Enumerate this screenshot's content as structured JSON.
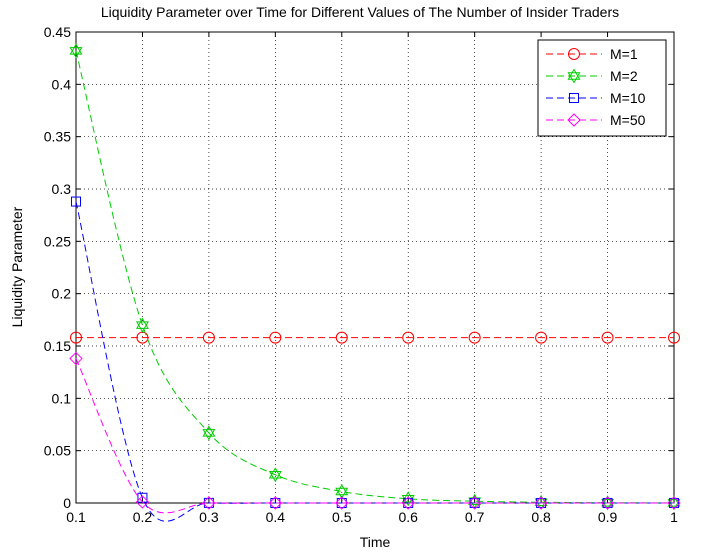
{
  "chart_data": {
    "type": "line",
    "title": "Liquidity Parameter over Time for Different Values of The Number of Insider Traders",
    "xlabel": "Time",
    "ylabel": "Liquidity Parameter",
    "xlim": [
      0.1,
      1
    ],
    "ylim": [
      0,
      0.45
    ],
    "grid": true,
    "legend_position": "top-right",
    "x": [
      0.1,
      0.2,
      0.3,
      0.4,
      0.5,
      0.6,
      0.7,
      0.8,
      0.9,
      1.0
    ],
    "xticks": [
      "0.1",
      "0.2",
      "0.3",
      "0.4",
      "0.5",
      "0.6",
      "0.7",
      "0.8",
      "0.9",
      "1"
    ],
    "yticks": [
      "0",
      "0.05",
      "0.1",
      "0.15",
      "0.2",
      "0.25",
      "0.3",
      "0.35",
      "0.4",
      "0.45"
    ],
    "series": [
      {
        "name": "M=1",
        "color": "#ff0000",
        "marker": "circle",
        "values": [
          0.158,
          0.158,
          0.158,
          0.158,
          0.158,
          0.158,
          0.158,
          0.158,
          0.158,
          0.158
        ]
      },
      {
        "name": "M=2",
        "color": "#00cc00",
        "marker": "hexagram",
        "values": [
          0.432,
          0.17,
          0.067,
          0.027,
          0.011,
          0.004,
          0.0017,
          0.0007,
          0.0003,
          0.0001
        ]
      },
      {
        "name": "M=10",
        "color": "#0000ff",
        "marker": "square",
        "values": [
          0.288,
          0.005,
          0.0001,
          0,
          0,
          0,
          0,
          0,
          0,
          0
        ]
      },
      {
        "name": "M=50",
        "color": "#ff00ff",
        "marker": "diamond",
        "values": [
          0.138,
          0.001,
          0,
          0,
          0,
          0,
          0,
          0,
          0,
          0
        ]
      }
    ]
  }
}
